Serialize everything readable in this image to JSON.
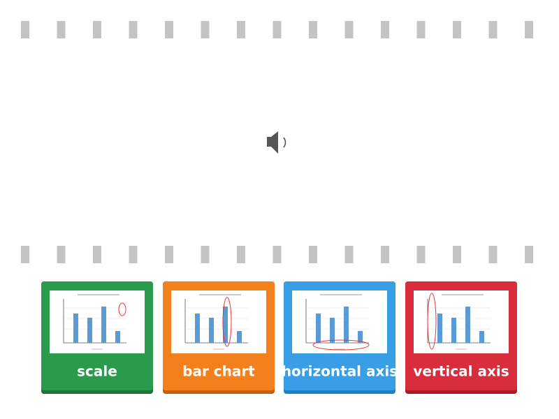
{
  "cards": [
    {
      "label": "scale"
    },
    {
      "label": "bar chart"
    },
    {
      "label": "horizontal axis"
    },
    {
      "label": "vertical axis"
    }
  ]
}
